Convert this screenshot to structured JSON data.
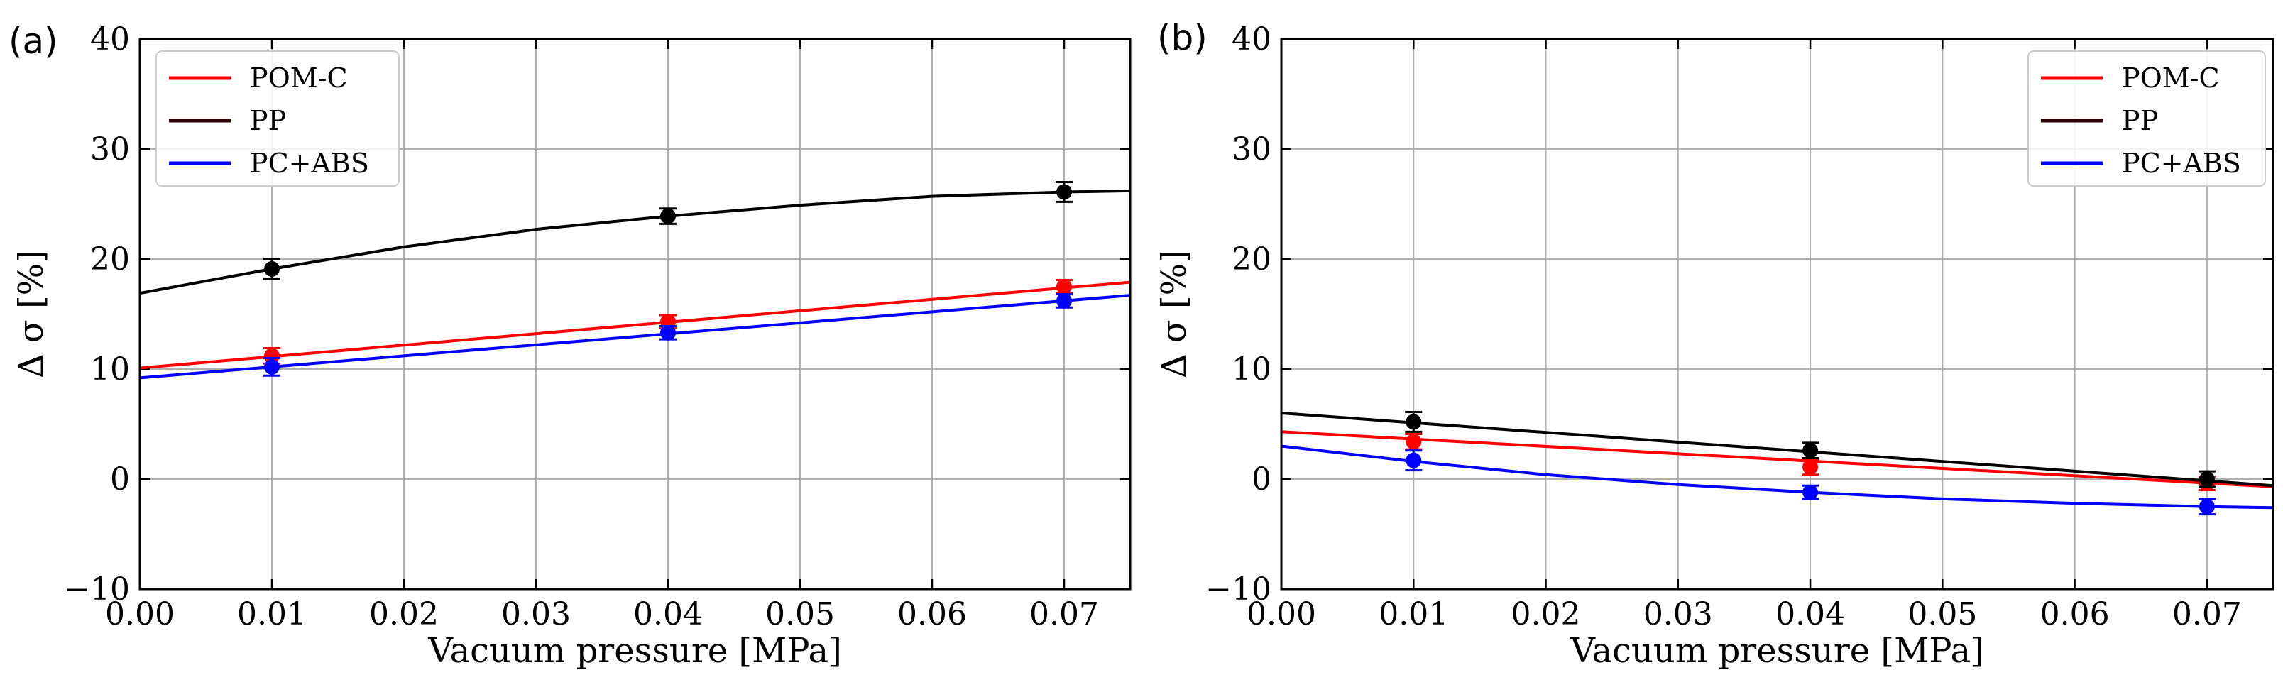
{
  "figure": {
    "series_colors": {
      "POM-C": "#ff0000",
      "PP": "#000000",
      "PC+ABS": "#0000ff"
    },
    "legend_line_colors": {
      "POM-C": "#ff0000",
      "PP": "#2a0000",
      "PC+ABS": "#0000ff"
    }
  },
  "chart_data": [
    {
      "panel_label": "(a)",
      "type": "line",
      "xlabel": "Vacuum pressure [MPa]",
      "ylabel": "Δ σ [%]",
      "xlim": [
        0.0,
        0.075
      ],
      "ylim": [
        -10,
        40
      ],
      "xticks": [
        0.0,
        0.01,
        0.02,
        0.03,
        0.04,
        0.05,
        0.06,
        0.07
      ],
      "xtick_labels": [
        "0.00",
        "0.01",
        "0.02",
        "0.03",
        "0.04",
        "0.05",
        "0.06",
        "0.07"
      ],
      "yticks": [
        -10,
        0,
        10,
        20,
        30,
        40
      ],
      "ytick_labels": [
        "−10",
        "0",
        "10",
        "20",
        "30",
        "40"
      ],
      "grid": true,
      "legend_position": "top-left",
      "series": [
        {
          "name": "POM-C",
          "points": [
            {
              "x": 0.01,
              "y": 11.2,
              "err": 0.7
            },
            {
              "x": 0.04,
              "y": 14.3,
              "err": 0.6
            },
            {
              "x": 0.07,
              "y": 17.5,
              "err": 0.6
            }
          ],
          "fit_x": [
            0.0,
            0.075
          ],
          "fit_y": [
            10.1,
            17.9
          ]
        },
        {
          "name": "PP",
          "points": [
            {
              "x": 0.01,
              "y": 19.1,
              "err": 0.9
            },
            {
              "x": 0.04,
              "y": 23.9,
              "err": 0.7
            },
            {
              "x": 0.07,
              "y": 26.1,
              "err": 0.9
            }
          ],
          "fit_x": [
            0.0,
            0.01,
            0.02,
            0.03,
            0.04,
            0.05,
            0.06,
            0.07,
            0.075
          ],
          "fit_y": [
            16.9,
            19.1,
            21.1,
            22.7,
            23.9,
            24.9,
            25.7,
            26.1,
            26.2
          ]
        },
        {
          "name": "PC+ABS",
          "points": [
            {
              "x": 0.01,
              "y": 10.2,
              "err": 0.8
            },
            {
              "x": 0.04,
              "y": 13.3,
              "err": 0.6
            },
            {
              "x": 0.07,
              "y": 16.2,
              "err": 0.6
            }
          ],
          "fit_x": [
            0.0,
            0.075
          ],
          "fit_y": [
            9.2,
            16.7
          ]
        }
      ]
    },
    {
      "panel_label": "(b)",
      "type": "line",
      "xlabel": "Vacuum pressure [MPa]",
      "ylabel": "Δ σ [%]",
      "xlim": [
        0.0,
        0.075
      ],
      "ylim": [
        -10,
        40
      ],
      "xticks": [
        0.0,
        0.01,
        0.02,
        0.03,
        0.04,
        0.05,
        0.06,
        0.07
      ],
      "xtick_labels": [
        "0.00",
        "0.01",
        "0.02",
        "0.03",
        "0.04",
        "0.05",
        "0.06",
        "0.07"
      ],
      "yticks": [
        -10,
        0,
        10,
        20,
        30,
        40
      ],
      "ytick_labels": [
        "−10",
        "0",
        "10",
        "20",
        "30",
        "40"
      ],
      "grid": true,
      "legend_position": "top-right",
      "series": [
        {
          "name": "POM-C",
          "points": [
            {
              "x": 0.01,
              "y": 3.4,
              "err": 0.7
            },
            {
              "x": 0.04,
              "y": 1.1,
              "err": 0.7
            },
            {
              "x": 0.07,
              "y": -0.4,
              "err": 0.6
            }
          ],
          "fit_x": [
            0.0,
            0.075
          ],
          "fit_y": [
            4.3,
            -0.7
          ]
        },
        {
          "name": "PP",
          "points": [
            {
              "x": 0.01,
              "y": 5.2,
              "err": 0.9
            },
            {
              "x": 0.04,
              "y": 2.6,
              "err": 0.7
            },
            {
              "x": 0.07,
              "y": 0.0,
              "err": 0.7
            }
          ],
          "fit_x": [
            0.0,
            0.075
          ],
          "fit_y": [
            6.0,
            -0.6
          ]
        },
        {
          "name": "PC+ABS",
          "points": [
            {
              "x": 0.01,
              "y": 1.7,
              "err": 0.9
            },
            {
              "x": 0.04,
              "y": -1.2,
              "err": 0.6
            },
            {
              "x": 0.07,
              "y": -2.5,
              "err": 0.7
            }
          ],
          "fit_x": [
            0.0,
            0.01,
            0.02,
            0.03,
            0.04,
            0.05,
            0.06,
            0.07,
            0.075
          ],
          "fit_y": [
            3.0,
            1.6,
            0.4,
            -0.5,
            -1.2,
            -1.8,
            -2.2,
            -2.5,
            -2.6
          ]
        }
      ]
    }
  ]
}
